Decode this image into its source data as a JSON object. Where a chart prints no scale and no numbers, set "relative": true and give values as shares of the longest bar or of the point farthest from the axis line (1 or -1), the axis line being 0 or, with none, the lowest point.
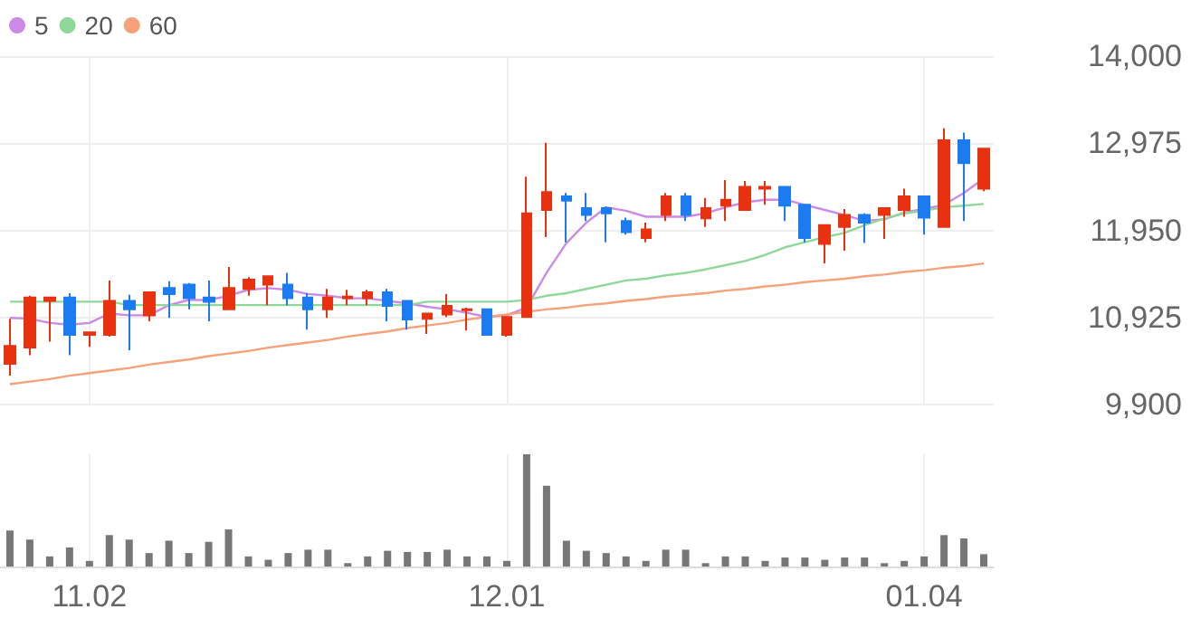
{
  "chart_data": [
    {
      "type": "candlestick",
      "tick_labels": "y",
      "grid": true,
      "legend": "top left",
      "marker": "none",
      "categories": [
        null,
        null,
        null,
        null,
        "11.02",
        null,
        null,
        null,
        null,
        null,
        null,
        null,
        null,
        null,
        null,
        null,
        null,
        null,
        null,
        null,
        null,
        null,
        null,
        null,
        null,
        "12.01",
        null,
        null,
        null,
        null,
        null,
        null,
        null,
        null,
        null,
        null,
        null,
        null,
        null,
        null,
        null,
        null,
        null,
        null,
        null,
        null,
        "01.04",
        null,
        null,
        null
      ],
      "ohlc": [
        [
          10380,
          10910,
          10240,
          10590
        ],
        [
          10570,
          11180,
          10480,
          11160
        ],
        [
          11120,
          11160,
          10640,
          11160
        ],
        [
          11160,
          11210,
          10480,
          10720
        ],
        [
          10720,
          10760,
          10580,
          10750
        ],
        [
          10720,
          11360,
          10700,
          11120
        ],
        [
          11120,
          11190,
          10540,
          11020
        ],
        [
          10950,
          11220,
          10880,
          11220
        ],
        [
          11270,
          11350,
          10920,
          11200
        ],
        [
          11310,
          11330,
          11020,
          11150
        ],
        [
          11160,
          11360,
          10880,
          11110
        ],
        [
          11020,
          11520,
          11020,
          11270
        ],
        [
          11260,
          11400,
          11180,
          11370
        ],
        [
          11310,
          11410,
          11070,
          11410
        ],
        [
          11310,
          11450,
          11070,
          11150
        ],
        [
          11160,
          11210,
          10780,
          11020
        ],
        [
          11020,
          11260,
          10920,
          11160
        ],
        [
          11150,
          11250,
          11070,
          11170
        ],
        [
          11150,
          11250,
          11070,
          11220
        ],
        [
          11220,
          11260,
          10880,
          11060
        ],
        [
          11120,
          11120,
          10780,
          10900
        ],
        [
          10910,
          10980,
          10730,
          10970
        ],
        [
          10960,
          11200,
          10930,
          11060
        ],
        [
          11010,
          11040,
          10770,
          11020
        ],
        [
          11020,
          11020,
          10720,
          10720
        ],
        [
          10720,
          10930,
          10700,
          10930
        ],
        [
          10930,
          12580,
          10930,
          12150
        ],
        [
          12190,
          12980,
          11870,
          12400
        ],
        [
          12350,
          12390,
          11810,
          12300
        ],
        [
          12210,
          12390,
          12060,
          12130
        ],
        [
          12210,
          12230,
          11810,
          12150
        ],
        [
          12060,
          12100,
          11900,
          11930
        ],
        [
          11860,
          12040,
          11810,
          11960
        ],
        [
          12130,
          12390,
          12060,
          12350
        ],
        [
          12350,
          12390,
          12060,
          12130
        ],
        [
          12090,
          12330,
          11990,
          12210
        ],
        [
          12240,
          12540,
          12060,
          12310
        ],
        [
          12190,
          12530,
          12190,
          12460
        ],
        [
          12440,
          12530,
          12250,
          12460
        ],
        [
          12460,
          12460,
          12060,
          12240
        ],
        [
          12250,
          12250,
          11810,
          11860
        ],
        [
          11790,
          12010,
          11560,
          12010
        ],
        [
          11990,
          12200,
          11710,
          12130
        ],
        [
          12130,
          12150,
          11800,
          12040
        ],
        [
          12130,
          12210,
          11850,
          12210
        ],
        [
          12190,
          12440,
          12110,
          12350
        ],
        [
          12350,
          12350,
          11900,
          12100
        ],
        [
          11990,
          13150,
          11990,
          13010
        ],
        [
          13010,
          13100,
          12060,
          12740
        ],
        [
          12440,
          12910,
          12410,
          12910
        ]
      ],
      "colors": [
        "#e8320f",
        "#e8320f",
        "#e8320f",
        "#1b7cf2",
        "#e8320f",
        "#e8320f",
        "#1b7cf2",
        "#e8320f",
        "#1b7cf2",
        "#1b7cf2",
        "#1b7cf2",
        "#e8320f",
        "#e8320f",
        "#e8320f",
        "#1b7cf2",
        "#1b7cf2",
        "#e8320f",
        "#e8320f",
        "#e8320f",
        "#1b7cf2",
        "#1b7cf2",
        "#e8320f",
        "#e8320f",
        "#e8320f",
        "#1b7cf2",
        "#e8320f",
        "#e8320f",
        "#e8320f",
        "#1b7cf2",
        "#1b7cf2",
        "#1b7cf2",
        "#1b7cf2",
        "#e8320f",
        "#e8320f",
        "#1b7cf2",
        "#e8320f",
        "#e8320f",
        "#e8320f",
        "#e8320f",
        "#1b7cf2",
        "#1b7cf2",
        "#e8320f",
        "#e8320f",
        "#1b7cf2",
        "#e8320f",
        "#e8320f",
        "#1b7cf2",
        "#e8320f",
        "#1b7cf2",
        "#e8320f"
      ],
      "series": [
        {
          "type": "line",
          "name": "5",
          "color": "#cc8ae6",
          "values": [
            10920,
            10910,
            10860,
            10840,
            10860,
            10970,
            10950,
            10950,
            11070,
            11130,
            11130,
            11180,
            11250,
            11270,
            11250,
            11200,
            11180,
            11150,
            11150,
            11120,
            11090,
            11050,
            11020,
            10980,
            10930,
            10950,
            11040,
            11450,
            11800,
            12040,
            12220,
            12180,
            12110,
            12110,
            12110,
            12150,
            12220,
            12280,
            12310,
            12310,
            12250,
            12190,
            12130,
            12060,
            12080,
            12160,
            12200,
            12250,
            12390,
            12560
          ]
        },
        {
          "type": "line",
          "name": "20",
          "color": "#8fd89a",
          "values": [
            11110,
            11110,
            11110,
            11110,
            11110,
            11110,
            11070,
            11070,
            11070,
            11070,
            11070,
            11070,
            11070,
            11070,
            11070,
            11070,
            11070,
            11070,
            11070,
            11070,
            11070,
            11110,
            11110,
            11110,
            11110,
            11110,
            11130,
            11180,
            11210,
            11260,
            11310,
            11360,
            11380,
            11420,
            11450,
            11490,
            11540,
            11590,
            11660,
            11750,
            11810,
            11870,
            11920,
            12010,
            12090,
            12150,
            12180,
            12220,
            12240,
            12260
          ]
        },
        {
          "type": "line",
          "name": "60",
          "color": "#f5a27a",
          "values": [
            10140,
            10170,
            10200,
            10240,
            10270,
            10300,
            10330,
            10370,
            10400,
            10430,
            10470,
            10500,
            10530,
            10570,
            10600,
            10630,
            10660,
            10700,
            10730,
            10760,
            10800,
            10830,
            10860,
            10900,
            10930,
            10960,
            10990,
            11020,
            11040,
            11070,
            11090,
            11120,
            11140,
            11170,
            11190,
            11210,
            11240,
            11260,
            11290,
            11310,
            11340,
            11360,
            11380,
            11410,
            11430,
            11460,
            11480,
            11510,
            11530,
            11560
          ]
        }
      ],
      "ylim": [
        9900,
        14000
      ],
      "yticks": [
        {
          "value": 9900,
          "label": "9,900"
        },
        {
          "value": 10925,
          "label": "10,925"
        },
        {
          "value": 11950,
          "label": "11,950"
        },
        {
          "value": 12975,
          "label": "12,975"
        },
        {
          "value": 14000,
          "label": "14,000"
        }
      ]
    },
    {
      "type": "bar",
      "relative": true,
      "tick_labels": "x",
      "grid": "x",
      "color": "#777777",
      "categories": [
        null,
        null,
        null,
        null,
        "11.02",
        null,
        null,
        null,
        null,
        null,
        null,
        null,
        null,
        null,
        null,
        null,
        null,
        null,
        null,
        null,
        null,
        null,
        null,
        null,
        null,
        "12.01",
        null,
        null,
        null,
        null,
        null,
        null,
        null,
        null,
        null,
        null,
        null,
        null,
        null,
        null,
        null,
        null,
        null,
        null,
        null,
        null,
        "01.04",
        null,
        null,
        null
      ],
      "values": [
        0.32,
        0.24,
        0.09,
        0.17,
        0.05,
        0.28,
        0.24,
        0.12,
        0.23,
        0.12,
        0.22,
        0.33,
        0.09,
        0.06,
        0.12,
        0.15,
        0.15,
        0.03,
        0.09,
        0.14,
        0.13,
        0.13,
        0.15,
        0.09,
        0.09,
        0.05,
        1,
        0.72,
        0.23,
        0.14,
        0.12,
        0.09,
        0.05,
        0.15,
        0.15,
        0.03,
        0.09,
        0.09,
        0.05,
        0.08,
        0.08,
        0.06,
        0.08,
        0.08,
        0.03,
        0.05,
        0.09,
        0.28,
        0.25,
        0.11
      ]
    }
  ]
}
